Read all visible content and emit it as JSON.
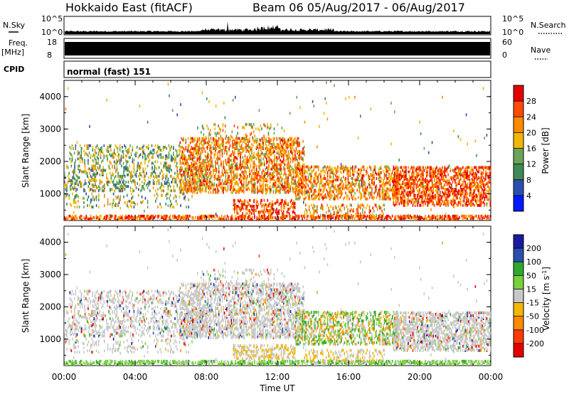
{
  "header": {
    "station": "Hokkaido East (fitACF)",
    "beam_info": "Beam 06 05/Aug/2017 - 06/Aug/2017"
  },
  "strips": {
    "nsky_label": "N.Sky",
    "nsky_ticks": [
      "10^5",
      "10^0"
    ],
    "nsearch_label": "N.Search",
    "nsearch_ticks": [
      "10^5",
      "10^0"
    ],
    "freq_label_top": "Freq.",
    "freq_label_unit": "[MHz]",
    "freq_ticks": [
      "18",
      "8"
    ],
    "nave_label": "Nave",
    "nave_ticks": [
      "60",
      "0"
    ],
    "cpid_label": "CPID",
    "cpid_value": "normal (fast) 151"
  },
  "colors": {
    "power_scale": [
      "#0019ff",
      "#2a4fb0",
      "#3f8a55",
      "#6aa556",
      "#f2b705",
      "#ff8a00",
      "#ff4a00",
      "#e50000"
    ],
    "velocity_scale": [
      "#e50000",
      "#ff3b00",
      "#ff8a00",
      "#f2b705",
      "#c8c8c8",
      "#7ad03a",
      "#2fa82f",
      "#2a4fb0",
      "#1a1aa0"
    ]
  },
  "chart_data": [
    {
      "type": "heatmap",
      "name": "Power",
      "xlabel": "",
      "ylabel": "Slant Range [km]",
      "xlim": [
        "00:00",
        "24:00"
      ],
      "ylim": [
        180,
        4500
      ],
      "yticks": [
        "1000",
        "2000",
        "3000",
        "4000"
      ],
      "colorbar_label": "Power [dB]",
      "colorbar_ticks": [
        "4",
        "8",
        "12",
        "16",
        "20",
        "24",
        "28"
      ],
      "colorbar_range": [
        0,
        32
      ]
    },
    {
      "type": "heatmap",
      "name": "Velocity",
      "xlabel": "Time UT",
      "ylabel": "Slant Range [km]",
      "xticks": [
        "00:00",
        "04:00",
        "08:00",
        "12:00",
        "16:00",
        "20:00",
        "00:00"
      ],
      "xlim": [
        "00:00",
        "24:00"
      ],
      "ylim": [
        180,
        4500
      ],
      "yticks": [
        "1000",
        "2000",
        "3000",
        "4000"
      ],
      "colorbar_label": "Velocity [m s",
      "colorbar_label_sup": "-1",
      "colorbar_label_end": "]",
      "colorbar_ticks": [
        "200",
        "100",
        "50",
        "15",
        "-15",
        "-50",
        "-100",
        "-200"
      ]
    }
  ]
}
